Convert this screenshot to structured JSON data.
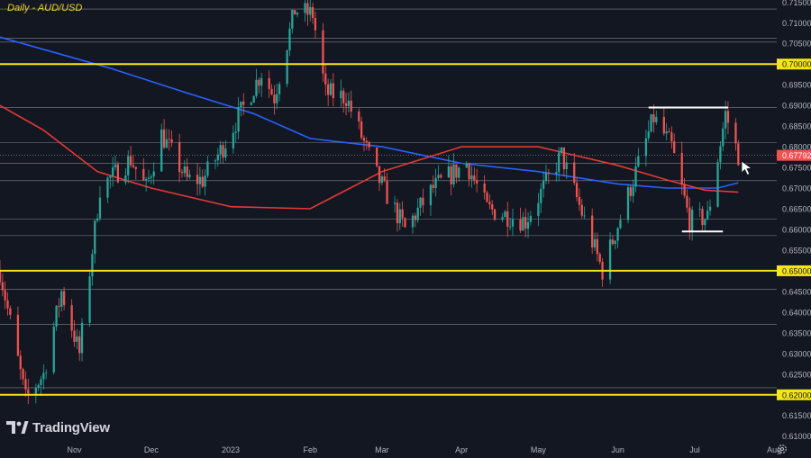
{
  "chart_title": "Daily - AUD/USD",
  "logo_text": "TradingView",
  "colors": {
    "background": "#131722",
    "bull": "#26a69a",
    "bear": "#ef5350",
    "ma_blue": "#2962ff",
    "ma_red": "#e53935",
    "support_yellow": "#f5e516",
    "axis_text": "#b2b5be",
    "price_tag": "#ef5350"
  },
  "chart_data": {
    "type": "candlestick",
    "title": "Daily - AUD/USD",
    "ylim": [
      0.6095,
      0.7155
    ],
    "x_range": [
      "2022-10-03",
      "2023-08-02"
    ],
    "x_tick_labels": [
      "Nov",
      "Dec",
      "2023",
      "Feb",
      "Mar",
      "Apr",
      "May",
      "Jun",
      "Jul",
      "Aug"
    ],
    "y_tick_labels": [
      "0.71500",
      "0.71000",
      "0.70500",
      "0.70000",
      "0.69500",
      "0.69000",
      "0.68500",
      "0.68000",
      "0.67500",
      "0.67000",
      "0.66500",
      "0.66000",
      "0.65500",
      "0.65000",
      "0.64500",
      "0.64000",
      "0.63500",
      "0.63000",
      "0.62500",
      "0.62000",
      "0.61500",
      "0.61000"
    ],
    "current_price": {
      "value": 0.67792,
      "label": "0.67792"
    },
    "key_levels": [
      {
        "value": 0.7,
        "label": "0.70000"
      },
      {
        "value": 0.65,
        "label": "0.65000"
      },
      {
        "value": 0.62,
        "label": "0.62000"
      }
    ],
    "reference_levels": [
      0.7133,
      0.7063,
      0.7053,
      0.6895,
      0.681,
      0.676,
      0.6718,
      0.6625,
      0.6585,
      0.6455,
      0.637,
      0.6217
    ],
    "range_markers": [
      {
        "type": "resistance",
        "value": 0.6895,
        "from": "2023-06-13",
        "to": "2023-07-14"
      },
      {
        "type": "support",
        "value": 0.6595,
        "from": "2023-06-26",
        "to": "2023-07-12"
      }
    ],
    "candle_anchors": [
      [
        "2022-10-03",
        0.65
      ],
      [
        "2022-10-13",
        0.619
      ],
      [
        "2022-10-20",
        0.625
      ],
      [
        "2022-10-27",
        0.645
      ],
      [
        "2022-11-03",
        0.63
      ],
      [
        "2022-11-11",
        0.67
      ],
      [
        "2022-11-23",
        0.677
      ],
      [
        "2022-11-29",
        0.67
      ],
      [
        "2022-12-05",
        0.683
      ],
      [
        "2022-12-15",
        0.672
      ],
      [
        "2022-12-21",
        0.672
      ],
      [
        "2022-12-29",
        0.68
      ],
      [
        "2023-01-13",
        0.698
      ],
      [
        "2023-01-18",
        0.692
      ],
      [
        "2023-01-26",
        0.713
      ],
      [
        "2023-02-02",
        0.712
      ],
      [
        "2023-02-07",
        0.693
      ],
      [
        "2023-02-15",
        0.692
      ],
      [
        "2023-02-27",
        0.673
      ],
      [
        "2023-03-10",
        0.66
      ],
      [
        "2023-03-21",
        0.67
      ],
      [
        "2023-04-03",
        0.676
      ],
      [
        "2023-04-11",
        0.665
      ],
      [
        "2023-04-26",
        0.662
      ],
      [
        "2023-05-10",
        0.678
      ],
      [
        "2023-05-26",
        0.65
      ],
      [
        "2023-06-07",
        0.672
      ],
      [
        "2023-06-15",
        0.687
      ],
      [
        "2023-06-22",
        0.68
      ],
      [
        "2023-06-29",
        0.662
      ],
      [
        "2023-07-06",
        0.663
      ],
      [
        "2023-07-13",
        0.688
      ],
      [
        "2023-07-18",
        0.678
      ]
    ],
    "moving_averages": [
      {
        "color": "#2962ff",
        "points": [
          [
            "2022-10-03",
            0.7065
          ],
          [
            "2022-11-15",
            0.699
          ],
          [
            "2022-12-15",
            0.693
          ],
          [
            "2023-01-10",
            0.688
          ],
          [
            "2023-02-01",
            0.682
          ],
          [
            "2023-03-01",
            0.68
          ],
          [
            "2023-04-01",
            0.676
          ],
          [
            "2023-05-01",
            0.674
          ],
          [
            "2023-06-01",
            0.671
          ],
          [
            "2023-06-20",
            0.67
          ],
          [
            "2023-07-10",
            0.67
          ],
          [
            "2023-07-18",
            0.6713
          ]
        ]
      },
      {
        "color": "#e53935",
        "points": [
          [
            "2022-10-03",
            0.69
          ],
          [
            "2022-10-20",
            0.684
          ],
          [
            "2022-11-10",
            0.674
          ],
          [
            "2022-12-01",
            0.67
          ],
          [
            "2023-01-01",
            0.6655
          ],
          [
            "2023-02-01",
            0.665
          ],
          [
            "2023-03-01",
            0.674
          ],
          [
            "2023-04-01",
            0.68
          ],
          [
            "2023-05-01",
            0.68
          ],
          [
            "2023-06-01",
            0.6755
          ],
          [
            "2023-06-20",
            0.672
          ],
          [
            "2023-07-05",
            0.6695
          ],
          [
            "2023-07-18",
            0.669
          ]
        ]
      }
    ]
  }
}
